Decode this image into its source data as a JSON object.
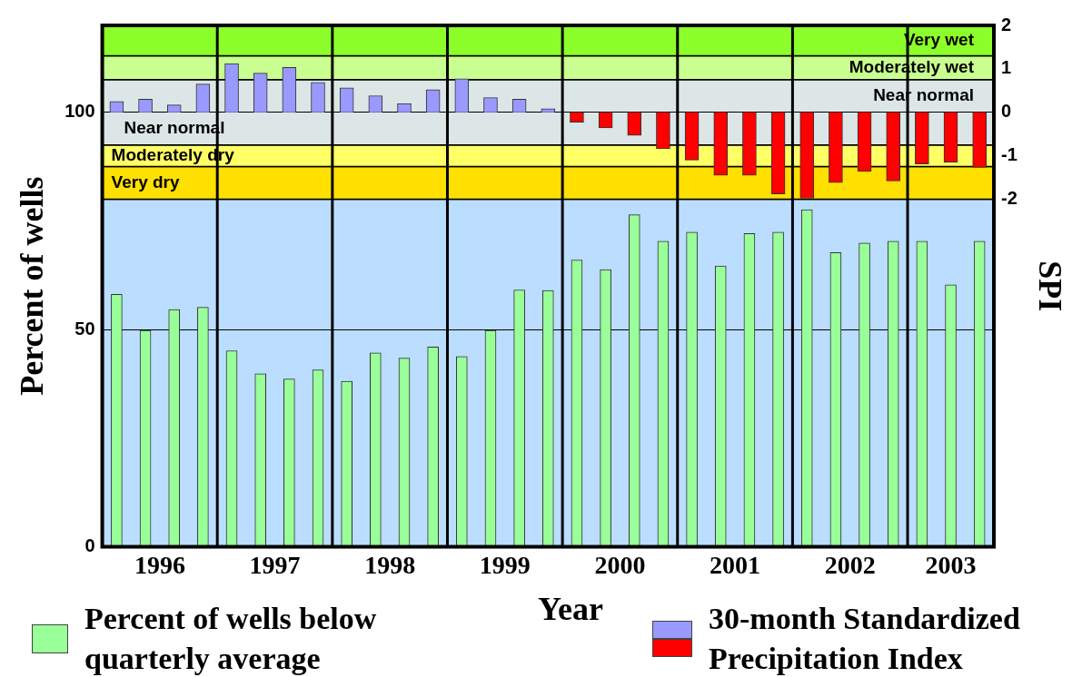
{
  "chart_data": {
    "type": "bar",
    "xlabel": "Year",
    "ylabel": "Percent of wells",
    "y2label": "SPI",
    "x": [
      1996.125,
      1996.375,
      1996.625,
      1996.875,
      1997.125,
      1997.375,
      1997.625,
      1997.875,
      1998.125,
      1998.375,
      1998.625,
      1998.875,
      1999.125,
      1999.375,
      1999.625,
      1999.875,
      2000.125,
      2000.375,
      2000.625,
      2000.875,
      2001.125,
      2001.375,
      2001.625,
      2001.875,
      2002.125,
      2002.375,
      2002.625,
      2002.875,
      2003.125,
      2003.375,
      2003.625
    ],
    "series": [
      {
        "name": "Percent of wells below quarterly average",
        "color": "#99ff99",
        "values": [
          58.1,
          49.8,
          54.6,
          55.1,
          45.1,
          39.8,
          38.6,
          40.7,
          38.1,
          44.6,
          43.4,
          46.0,
          43.8,
          49.8,
          59.1,
          59.0,
          66.0,
          63.8,
          76.4,
          70.3,
          72.4,
          64.6,
          72.1,
          72.4,
          77.6,
          67.7,
          69.9,
          70.3,
          70.3,
          60.3,
          70.3
        ]
      },
      {
        "name": "30-month Standardized Precipitation Index",
        "axis": "y2",
        "colors": [
          "#9999ff",
          "#9999ff",
          "#9999ff",
          "#9999ff",
          "#9999ff",
          "#9999ff",
          "#9999ff",
          "#9999ff",
          "#9999ff",
          "#9999ff",
          "#9999ff",
          "#9999ff",
          "#9999ff",
          "#9999ff",
          "#9999ff",
          "#9999ff",
          "#ff0000",
          "#ff0000",
          "#ff0000",
          "#ff0000",
          "#ff0000",
          "#ff0000",
          "#ff0000",
          "#ff0000",
          "#ff0000",
          "#ff0000",
          "#ff0000",
          "#ff0000",
          "#ff0000",
          "#ff0000",
          "#ff0000"
        ],
        "values": [
          0.25,
          0.3,
          0.17,
          0.65,
          1.12,
          0.9,
          1.03,
          0.69,
          0.56,
          0.38,
          0.2,
          0.52,
          0.77,
          0.34,
          0.3,
          0.08,
          -0.23,
          -0.36,
          -0.53,
          -0.84,
          -1.1,
          -1.45,
          -1.45,
          -1.88,
          -1.98,
          -1.62,
          -1.36,
          -1.58,
          -1.19,
          -1.15,
          -1.27
        ]
      }
    ],
    "xlim": [
      1996,
      2003.75
    ],
    "xticks": [
      {
        "value": 1996.5,
        "label": "1996"
      },
      {
        "value": 1997.5,
        "label": "1997"
      },
      {
        "value": 1998.5,
        "label": "1998"
      },
      {
        "value": 1999.5,
        "label": "1999"
      },
      {
        "value": 2000.5,
        "label": "2000"
      },
      {
        "value": 2001.5,
        "label": "2001"
      },
      {
        "value": 2002.5,
        "label": "2002"
      },
      {
        "value": 2003.375,
        "label": "2003"
      }
    ],
    "ylim": [
      0,
      120
    ],
    "yticks": [
      0,
      50,
      100
    ],
    "y2lim": [
      -10,
      2
    ],
    "y2ticks": [
      -2,
      -1,
      0,
      1,
      2
    ],
    "grid": "y",
    "legend": "bottom",
    "bands": [
      {
        "axis": "y2",
        "from": -10,
        "to": -2,
        "color": "#bbddff"
      },
      {
        "axis": "y2",
        "from": -2,
        "to": -1.25,
        "label": "Very dry",
        "color": "#ffe000"
      },
      {
        "axis": "y2",
        "from": -1.25,
        "to": -0.75,
        "label": "Moderately dry",
        "color": "#ffff66"
      },
      {
        "axis": "y2",
        "from": -0.75,
        "to": 0.75,
        "label": "Near normal",
        "color": "#dde6e6"
      },
      {
        "axis": "y2",
        "from": 0.75,
        "to": 1.3,
        "label": "Moderately wet",
        "color": "#c8ff90"
      },
      {
        "axis": "y2",
        "from": 1.3,
        "to": 2,
        "label": "Very wet",
        "color": "#8cff2a"
      }
    ],
    "ref_lines": [
      {
        "axis": "x",
        "value": 1997,
        "color": "#000000"
      },
      {
        "axis": "x",
        "value": 1998,
        "color": "#000000"
      },
      {
        "axis": "x",
        "value": 1999,
        "color": "#000000"
      },
      {
        "axis": "x",
        "value": 2000,
        "color": "#000000"
      },
      {
        "axis": "x",
        "value": 2001,
        "color": "#000000"
      },
      {
        "axis": "x",
        "value": 2002,
        "color": "#000000"
      },
      {
        "axis": "x",
        "value": 2003,
        "color": "#000000"
      }
    ],
    "annotations": [
      "Near normal"
    ]
  }
}
